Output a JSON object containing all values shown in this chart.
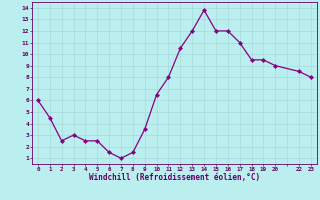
{
  "x": [
    0,
    1,
    2,
    3,
    4,
    5,
    6,
    7,
    8,
    9,
    10,
    11,
    12,
    13,
    14,
    15,
    16,
    17,
    18,
    19,
    20,
    22,
    23
  ],
  "y": [
    6.0,
    4.5,
    2.5,
    3.0,
    2.5,
    2.5,
    1.5,
    1.0,
    1.5,
    3.5,
    6.5,
    8.0,
    10.5,
    12.0,
    13.8,
    12.0,
    12.0,
    11.0,
    9.5,
    9.5,
    9.0,
    8.5,
    8.0
  ],
  "xlabel": "Windchill (Refroidissement éolien,°C)",
  "ylim": [
    0.5,
    14.5
  ],
  "xlim": [
    -0.5,
    23.5
  ],
  "line_color": "#880088",
  "marker_color": "#880088",
  "bg_color": "#bbeeee",
  "grid_color": "#aadddd",
  "tick_color": "#660066",
  "label_color": "#660066"
}
